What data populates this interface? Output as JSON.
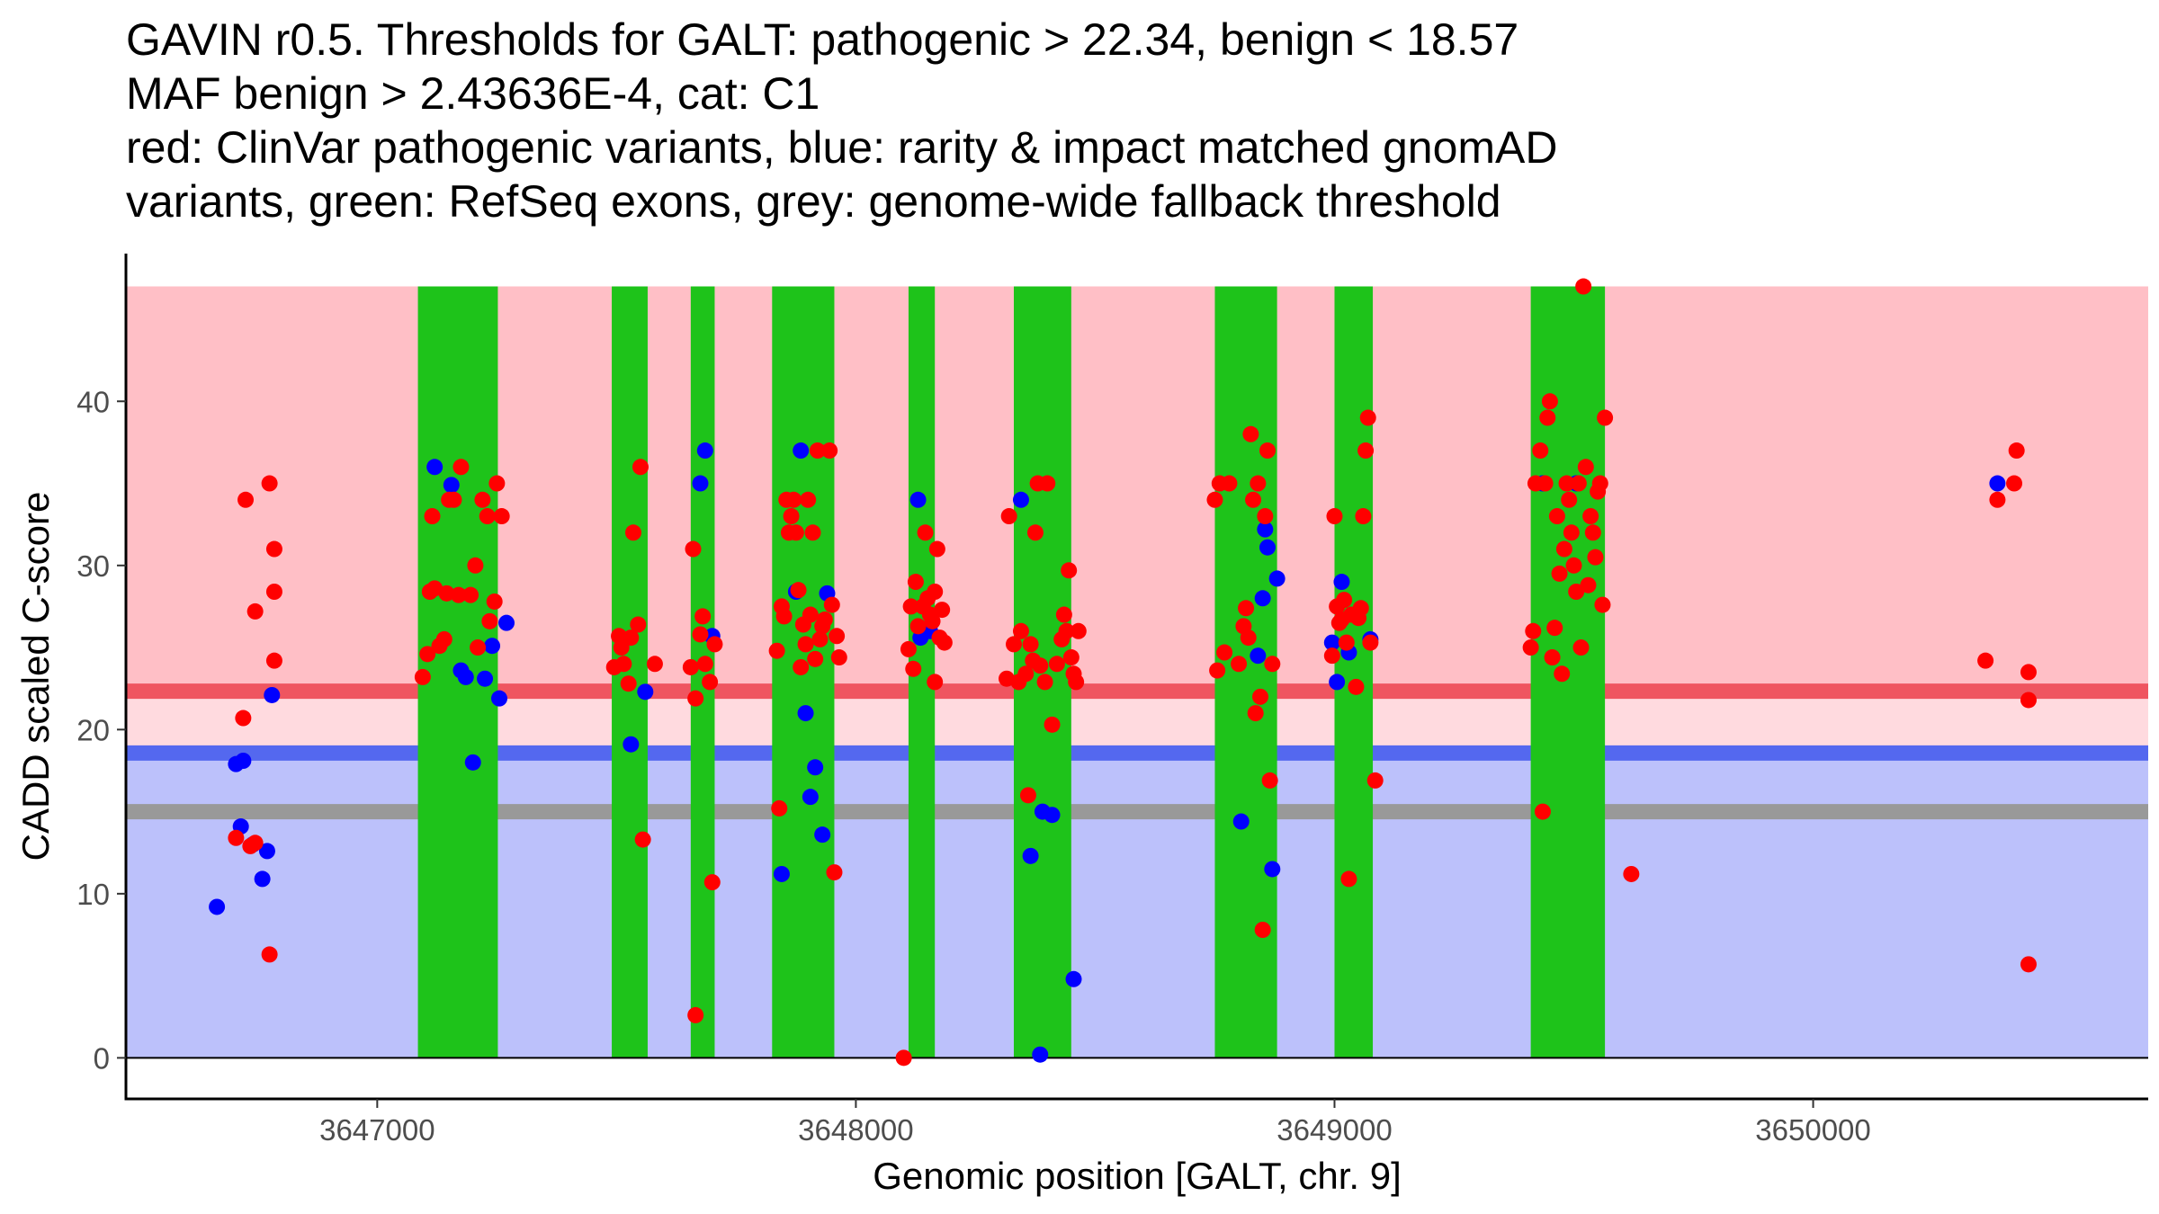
{
  "chart_data": {
    "type": "scatter",
    "title_lines": [
      "GAVIN r0.5. Thresholds for GALT: pathogenic > 22.34, benign < 18.57",
      "MAF benign > 2.43636E-4, cat: C1",
      "red: ClinVar pathogenic variants, blue: rarity & impact matched gnomAD",
      "variants, green: RefSeq exons, grey: genome-wide fallback threshold"
    ],
    "xlabel": "Genomic position [GALT, chr. 9]",
    "ylabel": "CADD scaled C-score",
    "xlim": [
      3646475,
      3650700
    ],
    "ylim": [
      -2.5,
      49
    ],
    "x_ticks": [
      3647000,
      3648000,
      3649000,
      3650000
    ],
    "y_ticks": [
      0,
      10,
      20,
      30,
      40
    ],
    "thresholds": {
      "pathogenic": 22.34,
      "benign": 18.57,
      "fallback": 15.0,
      "max": 47
    },
    "colors": {
      "pathogenic_region": "#ffbfc6",
      "middle_region": "#ffdadf",
      "benign_region": "#bcc1fb",
      "pathogenic_line": "#ef5560",
      "benign_line": "#5468ef",
      "fallback_line": "#999999",
      "exon": "#1ec31a",
      "clinvar": "#ff0000",
      "gnomad": "#0000ff"
    },
    "exons": [
      [
        3647085,
        3647252
      ],
      [
        3647490,
        3647565
      ],
      [
        3647655,
        3647705
      ],
      [
        3647825,
        3647955
      ],
      [
        3648110,
        3648165
      ],
      [
        3648330,
        3648450
      ],
      [
        3648750,
        3648880
      ],
      [
        3649000,
        3649080
      ],
      [
        3649410,
        3649565
      ]
    ],
    "series": [
      {
        "name": "gnomAD variants",
        "color": "blue",
        "points": [
          [
            3646665,
            9.2
          ],
          [
            3646705,
            17.9
          ],
          [
            3646720,
            18.1
          ],
          [
            3646715,
            14.1
          ],
          [
            3646740,
            13.0
          ],
          [
            3646760,
            10.9
          ],
          [
            3646770,
            12.6
          ],
          [
            3646780,
            22.1
          ],
          [
            3647120,
            36.0
          ],
          [
            3647155,
            34.9
          ],
          [
            3647175,
            23.6
          ],
          [
            3647185,
            23.2
          ],
          [
            3647200,
            18.0
          ],
          [
            3647225,
            23.1
          ],
          [
            3647240,
            25.1
          ],
          [
            3647255,
            21.9
          ],
          [
            3647270,
            26.5
          ],
          [
            3647530,
            19.1
          ],
          [
            3647560,
            22.3
          ],
          [
            3647675,
            35.0
          ],
          [
            3647685,
            37.0
          ],
          [
            3647700,
            25.7
          ],
          [
            3647845,
            11.2
          ],
          [
            3647875,
            28.4
          ],
          [
            3647885,
            37.0
          ],
          [
            3647895,
            21.0
          ],
          [
            3647905,
            15.9
          ],
          [
            3647915,
            17.7
          ],
          [
            3647930,
            13.6
          ],
          [
            3647940,
            28.3
          ],
          [
            3648130,
            34.0
          ],
          [
            3648135,
            25.6
          ],
          [
            3648155,
            26.0
          ],
          [
            3648345,
            34.0
          ],
          [
            3648365,
            12.3
          ],
          [
            3648385,
            0.2
          ],
          [
            3648390,
            15.0
          ],
          [
            3648410,
            14.8
          ],
          [
            3648455,
            4.8
          ],
          [
            3648805,
            14.4
          ],
          [
            3648840,
            24.5
          ],
          [
            3648850,
            28.0
          ],
          [
            3648855,
            32.2
          ],
          [
            3648860,
            31.1
          ],
          [
            3648870,
            11.5
          ],
          [
            3648880,
            29.2
          ],
          [
            3648995,
            25.3
          ],
          [
            3649005,
            22.9
          ],
          [
            3649015,
            29.0
          ],
          [
            3649030,
            24.7
          ],
          [
            3649075,
            25.5
          ],
          [
            3649435,
            35.0
          ],
          [
            3649505,
            35.0
          ],
          [
            3650385,
            35.0
          ]
        ]
      },
      {
        "name": "ClinVar pathogenic variants",
        "color": "red",
        "points": [
          [
            3646705,
            13.4
          ],
          [
            3646720,
            20.7
          ],
          [
            3646725,
            34.0
          ],
          [
            3646735,
            12.9
          ],
          [
            3646745,
            13.1
          ],
          [
            3646745,
            27.2
          ],
          [
            3646775,
            6.3
          ],
          [
            3646775,
            35.0
          ],
          [
            3646785,
            28.4
          ],
          [
            3646785,
            31.0
          ],
          [
            3646785,
            24.2
          ],
          [
            3647095,
            23.2
          ],
          [
            3647105,
            24.6
          ],
          [
            3647110,
            28.4
          ],
          [
            3647115,
            33.0
          ],
          [
            3647120,
            28.6
          ],
          [
            3647130,
            25.1
          ],
          [
            3647140,
            25.5
          ],
          [
            3647145,
            28.3
          ],
          [
            3647150,
            34.0
          ],
          [
            3647160,
            34.0
          ],
          [
            3647170,
            28.2
          ],
          [
            3647175,
            36.0
          ],
          [
            3647195,
            28.2
          ],
          [
            3647205,
            30.0
          ],
          [
            3647210,
            25.0
          ],
          [
            3647220,
            34.0
          ],
          [
            3647230,
            33.0
          ],
          [
            3647235,
            26.6
          ],
          [
            3647245,
            27.8
          ],
          [
            3647250,
            35.0
          ],
          [
            3647260,
            33.0
          ],
          [
            3647495,
            23.8
          ],
          [
            3647505,
            25.7
          ],
          [
            3647510,
            25.0
          ],
          [
            3647515,
            24.0
          ],
          [
            3647525,
            22.8
          ],
          [
            3647530,
            25.6
          ],
          [
            3647535,
            32.0
          ],
          [
            3647545,
            26.4
          ],
          [
            3647550,
            36.0
          ],
          [
            3647555,
            13.3
          ],
          [
            3647580,
            24.0
          ],
          [
            3647655,
            23.8
          ],
          [
            3647660,
            31.0
          ],
          [
            3647665,
            21.9
          ],
          [
            3647665,
            2.6
          ],
          [
            3647675,
            25.8
          ],
          [
            3647680,
            26.9
          ],
          [
            3647685,
            24.0
          ],
          [
            3647695,
            22.9
          ],
          [
            3647700,
            10.7
          ],
          [
            3647705,
            25.2
          ],
          [
            3647835,
            24.8
          ],
          [
            3647840,
            15.2
          ],
          [
            3647845,
            27.5
          ],
          [
            3647850,
            26.9
          ],
          [
            3647855,
            34.0
          ],
          [
            3647860,
            32.0
          ],
          [
            3647865,
            33.0
          ],
          [
            3647870,
            34.0
          ],
          [
            3647875,
            32.0
          ],
          [
            3647880,
            28.5
          ],
          [
            3647885,
            23.8
          ],
          [
            3647890,
            26.4
          ],
          [
            3647895,
            25.2
          ],
          [
            3647900,
            34.0
          ],
          [
            3647905,
            27.0
          ],
          [
            3647910,
            32.0
          ],
          [
            3647915,
            24.3
          ],
          [
            3647920,
            37.0
          ],
          [
            3647925,
            25.5
          ],
          [
            3647930,
            26.3
          ],
          [
            3647935,
            26.7
          ],
          [
            3647945,
            37.0
          ],
          [
            3647950,
            27.6
          ],
          [
            3647955,
            11.3
          ],
          [
            3647960,
            25.7
          ],
          [
            3647965,
            24.4
          ],
          [
            3648100,
            0.0
          ],
          [
            3648110,
            24.9
          ],
          [
            3648115,
            27.5
          ],
          [
            3648120,
            23.7
          ],
          [
            3648125,
            29.0
          ],
          [
            3648130,
            26.3
          ],
          [
            3648140,
            27.5
          ],
          [
            3648145,
            32.0
          ],
          [
            3648150,
            28.0
          ],
          [
            3648155,
            27.0
          ],
          [
            3648160,
            26.6
          ],
          [
            3648165,
            28.4
          ],
          [
            3648170,
            31.0
          ],
          [
            3648175,
            25.6
          ],
          [
            3648180,
            27.3
          ],
          [
            3648185,
            25.3
          ],
          [
            3648165,
            22.9
          ],
          [
            3648315,
            23.1
          ],
          [
            3648320,
            33.0
          ],
          [
            3648330,
            25.2
          ],
          [
            3648340,
            22.9
          ],
          [
            3648345,
            26.0
          ],
          [
            3648355,
            23.4
          ],
          [
            3648360,
            16.0
          ],
          [
            3648365,
            25.2
          ],
          [
            3648370,
            24.2
          ],
          [
            3648375,
            32.0
          ],
          [
            3648380,
            35.0
          ],
          [
            3648385,
            23.9
          ],
          [
            3648395,
            22.9
          ],
          [
            3648400,
            35.0
          ],
          [
            3648410,
            20.3
          ],
          [
            3648420,
            24.0
          ],
          [
            3648430,
            25.5
          ],
          [
            3648435,
            27.0
          ],
          [
            3648440,
            26.0
          ],
          [
            3648445,
            29.7
          ],
          [
            3648450,
            24.4
          ],
          [
            3648455,
            23.4
          ],
          [
            3648460,
            22.9
          ],
          [
            3648465,
            26.0
          ],
          [
            3648750,
            34.0
          ],
          [
            3648755,
            23.6
          ],
          [
            3648760,
            35.0
          ],
          [
            3648770,
            24.7
          ],
          [
            3648780,
            35.0
          ],
          [
            3648800,
            24.0
          ],
          [
            3648810,
            26.3
          ],
          [
            3648815,
            27.4
          ],
          [
            3648820,
            25.6
          ],
          [
            3648825,
            38.0
          ],
          [
            3648830,
            34.0
          ],
          [
            3648835,
            21.0
          ],
          [
            3648840,
            35.0
          ],
          [
            3648845,
            22.0
          ],
          [
            3648850,
            7.8
          ],
          [
            3648855,
            33.0
          ],
          [
            3648860,
            37.0
          ],
          [
            3648865,
            16.9
          ],
          [
            3648870,
            24.0
          ],
          [
            3648995,
            24.5
          ],
          [
            3649000,
            33.0
          ],
          [
            3649005,
            27.5
          ],
          [
            3649010,
            26.5
          ],
          [
            3649015,
            26.7
          ],
          [
            3649020,
            27.9
          ],
          [
            3649025,
            25.3
          ],
          [
            3649030,
            10.9
          ],
          [
            3649035,
            27.0
          ],
          [
            3649045,
            22.6
          ],
          [
            3649050,
            26.8
          ],
          [
            3649055,
            27.4
          ],
          [
            3649060,
            33.0
          ],
          [
            3649065,
            37.0
          ],
          [
            3649070,
            39.0
          ],
          [
            3649075,
            25.3
          ],
          [
            3649085,
            16.9
          ],
          [
            3649410,
            25.0
          ],
          [
            3649415,
            26.0
          ],
          [
            3649420,
            35.0
          ],
          [
            3649430,
            37.0
          ],
          [
            3649435,
            15.0
          ],
          [
            3649440,
            35.0
          ],
          [
            3649445,
            39.0
          ],
          [
            3649450,
            40.0
          ],
          [
            3649455,
            24.4
          ],
          [
            3649460,
            26.2
          ],
          [
            3649465,
            33.0
          ],
          [
            3649470,
            29.5
          ],
          [
            3649475,
            23.4
          ],
          [
            3649480,
            31.0
          ],
          [
            3649485,
            35.0
          ],
          [
            3649490,
            34.0
          ],
          [
            3649495,
            32.0
          ],
          [
            3649500,
            30.0
          ],
          [
            3649505,
            28.4
          ],
          [
            3649510,
            35.0
          ],
          [
            3649515,
            25.0
          ],
          [
            3649520,
            47.0
          ],
          [
            3649525,
            36.0
          ],
          [
            3649530,
            28.8
          ],
          [
            3649535,
            33.0
          ],
          [
            3649540,
            32.0
          ],
          [
            3649545,
            30.5
          ],
          [
            3649550,
            34.5
          ],
          [
            3649555,
            35.0
          ],
          [
            3649560,
            27.6
          ],
          [
            3649565,
            39.0
          ],
          [
            3649620,
            11.2
          ],
          [
            3650360,
            24.2
          ],
          [
            3650385,
            34.0
          ],
          [
            3650420,
            35.0
          ],
          [
            3650425,
            37.0
          ],
          [
            3650450,
            23.5
          ],
          [
            3650450,
            21.8
          ],
          [
            3650450,
            5.7
          ]
        ]
      }
    ]
  }
}
